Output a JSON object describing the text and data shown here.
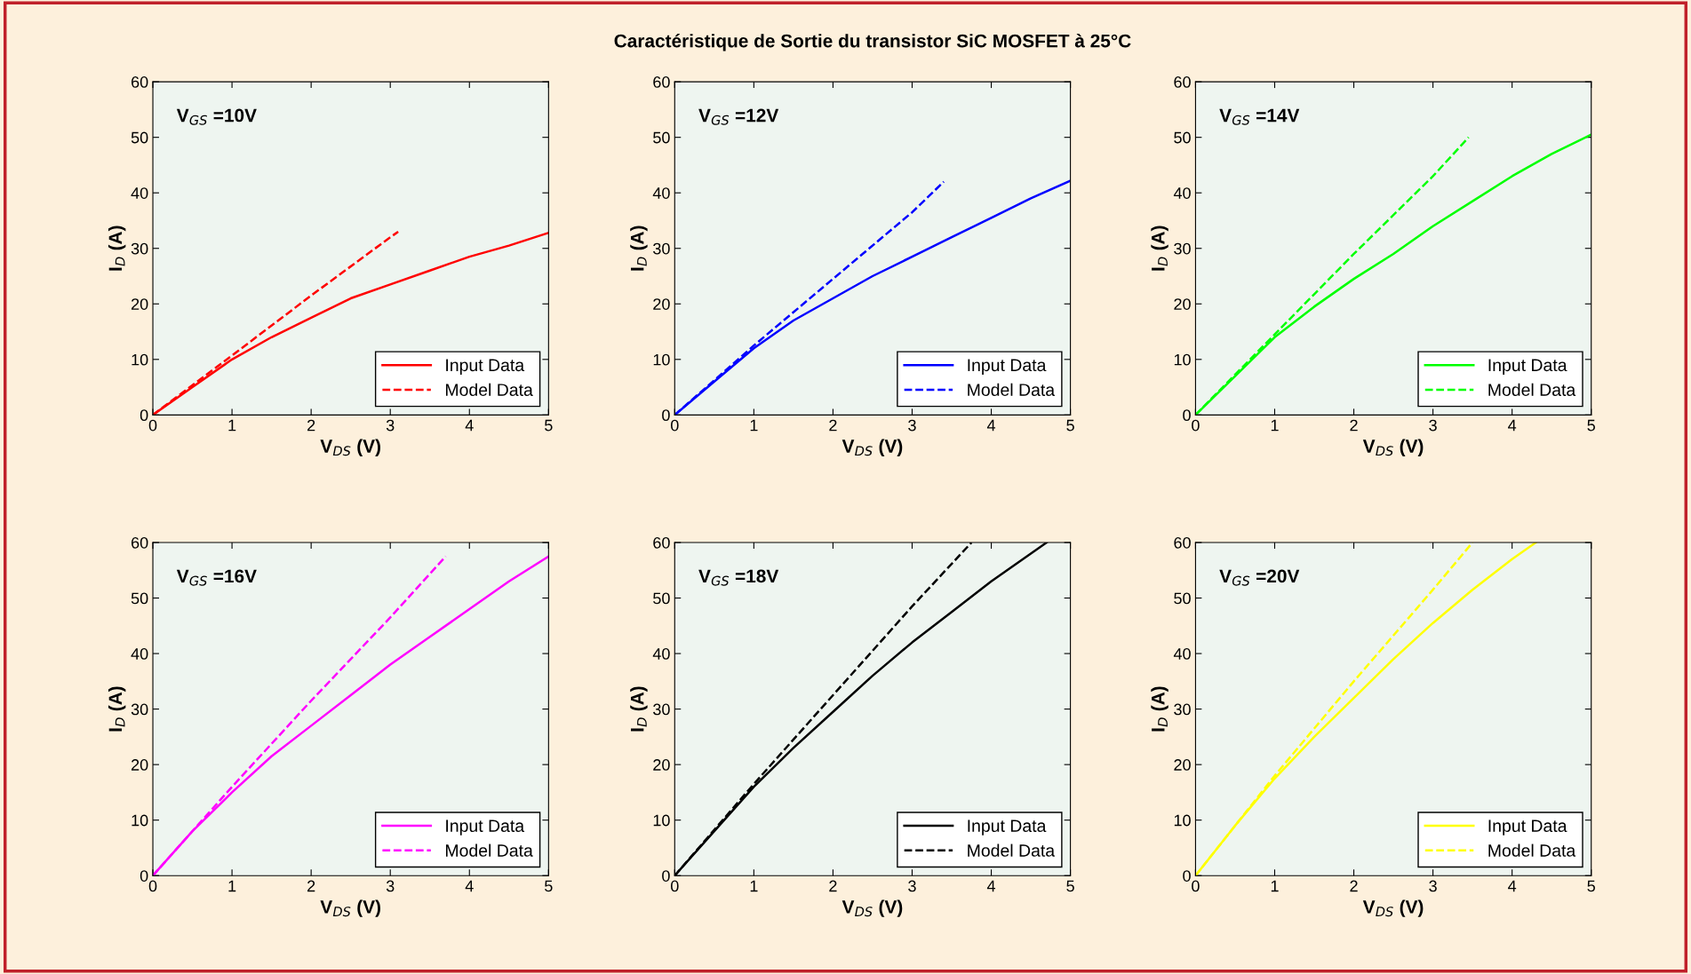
{
  "chart_data": [
    {
      "type": "line",
      "xlabel": "V$_{DS}$ (V)",
      "ylabel": "I$_{D}$ (A)",
      "annotations": [
        "V$_{GS}$ =10V"
      ],
      "xlim": [
        0,
        5
      ],
      "ylim": [
        0,
        60
      ],
      "xticks": [
        0,
        1,
        2,
        3,
        4,
        5
      ],
      "yticks": [
        0,
        10,
        20,
        30,
        40,
        50,
        60
      ],
      "legend": "bottom right",
      "grid": false,
      "series": [
        {
          "name": "Input Data",
          "color": "#ff0000",
          "line_style": "solid",
          "x": [
            0,
            0.5,
            1,
            1.5,
            2,
            2.5,
            3,
            3.5,
            4,
            4.5,
            5
          ],
          "values": [
            0,
            5,
            10,
            14,
            17.5,
            21,
            23.5,
            26,
            28.5,
            30.5,
            32.8
          ]
        },
        {
          "name": "Model Data",
          "color": "#ff0000",
          "line_style": "dashed",
          "x": [
            0,
            1,
            2,
            3,
            3.1
          ],
          "values": [
            0,
            10.7,
            21.5,
            32,
            33
          ]
        }
      ]
    },
    {
      "type": "line",
      "title": "Caractéristique de Sortie du transistor SiC MOSFET à 25°C",
      "xlabel": "V$_{DS}$ (V)",
      "ylabel": "I$_{D}$ (A)",
      "annotations": [
        "V$_{GS}$ =12V"
      ],
      "xlim": [
        0,
        5
      ],
      "ylim": [
        0,
        60
      ],
      "xticks": [
        0,
        1,
        2,
        3,
        4,
        5
      ],
      "yticks": [
        0,
        10,
        20,
        30,
        40,
        50,
        60
      ],
      "legend": "bottom right",
      "grid": false,
      "series": [
        {
          "name": "Input Data",
          "color": "#0000ff",
          "line_style": "solid",
          "x": [
            0,
            0.5,
            1,
            1.5,
            2,
            2.5,
            3,
            3.5,
            4,
            4.5,
            5
          ],
          "values": [
            0,
            6,
            12,
            17,
            21,
            25,
            28.5,
            32,
            35.5,
            39,
            42.2
          ]
        },
        {
          "name": "Model Data",
          "color": "#0000ff",
          "line_style": "dashed",
          "x": [
            0,
            1,
            2,
            3,
            3.4
          ],
          "values": [
            0,
            12.5,
            24.5,
            36.5,
            42
          ]
        }
      ]
    },
    {
      "type": "line",
      "xlabel": "V$_{DS}$ (V)",
      "ylabel": "I$_{D}$ (A)",
      "annotations": [
        "V$_{GS}$ =14V"
      ],
      "xlim": [
        0,
        5
      ],
      "ylim": [
        0,
        60
      ],
      "xticks": [
        0,
        1,
        2,
        3,
        4,
        5
      ],
      "yticks": [
        0,
        10,
        20,
        30,
        40,
        50,
        60
      ],
      "legend": "bottom right",
      "grid": false,
      "series": [
        {
          "name": "Input Data",
          "color": "#00ff00",
          "line_style": "solid",
          "x": [
            0,
            0.5,
            1,
            1.5,
            2,
            2.5,
            3,
            3.5,
            4,
            4.5,
            5
          ],
          "values": [
            0,
            7,
            14,
            19.5,
            24.5,
            29,
            34,
            38.5,
            43,
            47,
            50.5
          ]
        },
        {
          "name": "Model Data",
          "color": "#00ff00",
          "line_style": "dashed",
          "x": [
            0,
            1,
            2,
            3,
            3.45
          ],
          "values": [
            0,
            14.5,
            29,
            43,
            50
          ]
        }
      ]
    },
    {
      "type": "line",
      "xlabel": "V$_{DS}$ (V)",
      "ylabel": "I$_{D}$ (A)",
      "annotations": [
        "V$_{GS}$ =16V"
      ],
      "xlim": [
        0,
        5
      ],
      "ylim": [
        0,
        60
      ],
      "xticks": [
        0,
        1,
        2,
        3,
        4,
        5
      ],
      "yticks": [
        0,
        10,
        20,
        30,
        40,
        50,
        60
      ],
      "legend": "bottom right",
      "grid": false,
      "series": [
        {
          "name": "Input Data",
          "color": "#ff00ff",
          "line_style": "solid",
          "x": [
            0,
            0.5,
            1,
            1.5,
            2,
            2.5,
            3,
            3.5,
            4,
            4.5,
            5
          ],
          "values": [
            0,
            8,
            15,
            21.5,
            27,
            32.5,
            38,
            43,
            48,
            53,
            57.5
          ]
        },
        {
          "name": "Model Data",
          "color": "#ff00ff",
          "line_style": "dashed",
          "x": [
            0,
            1,
            2,
            3,
            3.7
          ],
          "values": [
            0,
            16,
            31.5,
            46.5,
            57.5
          ]
        }
      ]
    },
    {
      "type": "line",
      "xlabel": "V$_{DS}$ (V)",
      "ylabel": "I$_{D}$ (A)",
      "annotations": [
        "V$_{GS}$ =18V"
      ],
      "xlim": [
        0,
        5
      ],
      "ylim": [
        0,
        60
      ],
      "xticks": [
        0,
        1,
        2,
        3,
        4,
        5
      ],
      "yticks": [
        0,
        10,
        20,
        30,
        40,
        50,
        60
      ],
      "legend": "bottom right",
      "grid": false,
      "series": [
        {
          "name": "Input Data",
          "color": "#000000",
          "line_style": "solid",
          "x": [
            0,
            0.5,
            1,
            1.5,
            2,
            2.5,
            3,
            3.5,
            4,
            4.5,
            4.7
          ],
          "values": [
            0,
            8,
            16,
            23,
            29.5,
            36,
            42,
            47.5,
            53,
            58,
            60
          ]
        },
        {
          "name": "Model Data",
          "color": "#000000",
          "line_style": "dashed",
          "x": [
            0,
            1,
            2,
            3,
            3.75
          ],
          "values": [
            0,
            16.5,
            32.5,
            48.5,
            60
          ]
        }
      ]
    },
    {
      "type": "line",
      "xlabel": "V$_{DS}$ (V)",
      "ylabel": "I$_{D}$ (A)",
      "annotations": [
        "V$_{GS}$ =20V"
      ],
      "xlim": [
        0,
        5
      ],
      "ylim": [
        0,
        60
      ],
      "xticks": [
        0,
        1,
        2,
        3,
        4,
        5
      ],
      "yticks": [
        0,
        10,
        20,
        30,
        40,
        50,
        60
      ],
      "legend": "bottom right",
      "grid": false,
      "series": [
        {
          "name": "Input Data",
          "color": "#ffff00",
          "line_style": "solid",
          "x": [
            0,
            0.5,
            1,
            1.5,
            2,
            2.5,
            3,
            3.5,
            4,
            4.3
          ],
          "values": [
            0,
            9,
            17.5,
            25,
            32,
            39,
            45.5,
            51.5,
            57,
            60
          ]
        },
        {
          "name": "Model Data",
          "color": "#ffff00",
          "line_style": "dashed",
          "x": [
            0,
            1,
            2,
            3,
            3.5
          ],
          "values": [
            0,
            18,
            35,
            51.5,
            60
          ]
        }
      ]
    }
  ]
}
